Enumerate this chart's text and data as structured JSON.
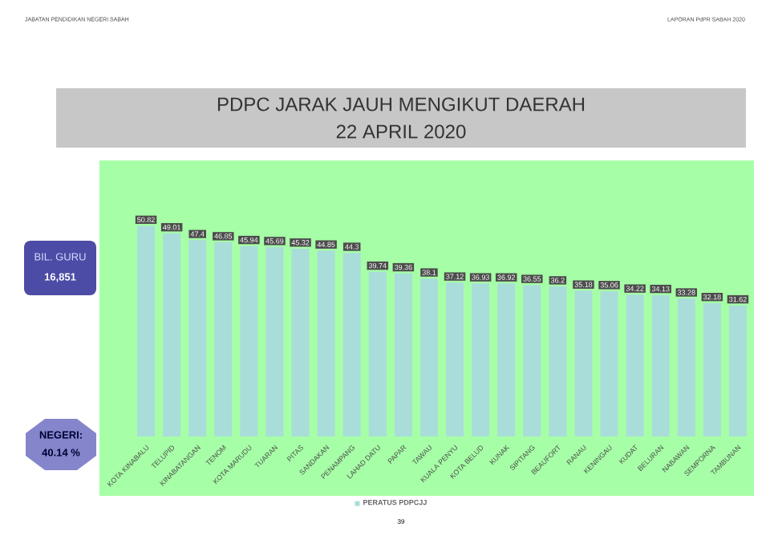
{
  "chart_data": {
    "type": "bar",
    "title": "PDPC JARAK JAUH MENGIKUT DAERAH",
    "subtitle": "22 APRIL 2020",
    "categories": [
      "KOTA KINABALU",
      "TELUPID",
      "KINABATANGAN",
      "TENOM",
      "KOTA MARUDU",
      "TUARAN",
      "PITAS",
      "SANDAKAN",
      "PENAMPANG",
      "LAHAD DATU",
      "PAPAR",
      "TAWAU",
      "KUALA PENYU",
      "KOTA BELUD",
      "KUNAK",
      "SIPITANG",
      "BEAUFORT",
      "RANAU",
      "KENINGAU",
      "KUDAT",
      "BELURAN",
      "NABAWAN",
      "SEMPORNA",
      "TAMBUNAN"
    ],
    "series": [
      {
        "name": "PERATUS PDPCJJ",
        "color": "#a9ddd9",
        "values": [
          50.82,
          49.01,
          47.4,
          46.85,
          45.94,
          45.69,
          45.32,
          44.85,
          44.3,
          39.74,
          39.36,
          38.1,
          37.12,
          36.93,
          36.92,
          36.55,
          36.2,
          35.18,
          35.06,
          34.22,
          34.13,
          33.28,
          32.18,
          31.62
        ]
      }
    ],
    "tick_labels": "x",
    "data_labels": true,
    "legend": "bottom",
    "annotations": [
      "JABATAN PENDIDIKAN NEGERI SABAH",
      "LAPORAN PdPR SABAH 2020",
      "BIL. GURU",
      "16,851",
      "NEGERI:",
      "40.14 %",
      "39"
    ]
  }
}
